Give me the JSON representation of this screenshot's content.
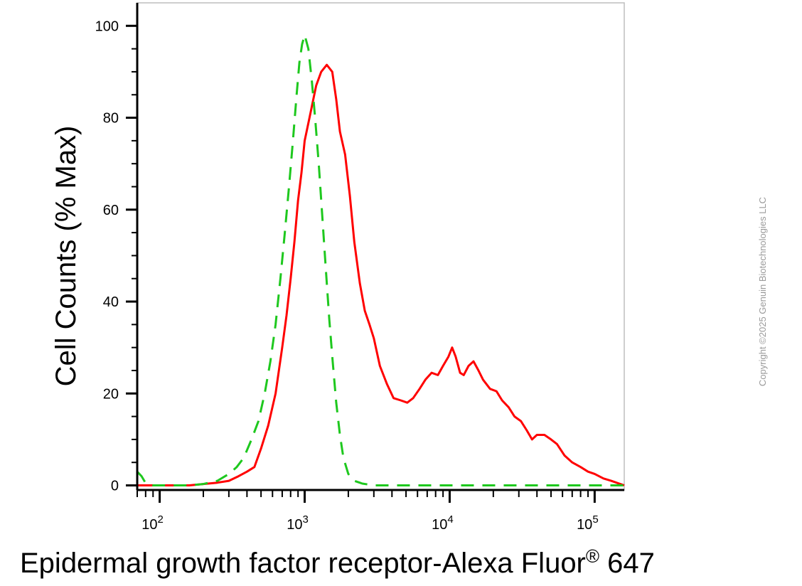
{
  "chart_data": {
    "type": "line",
    "xlabel": "Epidermal growth factor receptor-Alexa Fluor",
    "xlabel_superscript": "®",
    "xlabel_suffix": " 647",
    "ylabel": "Cell Counts (% Max)",
    "xscale": "log",
    "xlim": [
      70,
      160000
    ],
    "ylim": [
      -1,
      105
    ],
    "yticks": [
      0,
      20,
      40,
      60,
      80,
      100
    ],
    "xticks": [
      {
        "value": 100,
        "base": "10",
        "exp": "2"
      },
      {
        "value": 1000,
        "base": "10",
        "exp": "3"
      },
      {
        "value": 10000,
        "base": "10",
        "exp": "4"
      },
      {
        "value": 100000,
        "base": "10",
        "exp": "5"
      }
    ],
    "grid": false,
    "series": [
      {
        "color": "#ff0000",
        "style": "solid",
        "points": [
          [
            70,
            0
          ],
          [
            90,
            0
          ],
          [
            120,
            0
          ],
          [
            160,
            0
          ],
          [
            200,
            0.3
          ],
          [
            250,
            0.6
          ],
          [
            300,
            1
          ],
          [
            350,
            2
          ],
          [
            400,
            3
          ],
          [
            450,
            4
          ],
          [
            500,
            8
          ],
          [
            560,
            13
          ],
          [
            630,
            20
          ],
          [
            700,
            30
          ],
          [
            750,
            37
          ],
          [
            800,
            45
          ],
          [
            850,
            53
          ],
          [
            900,
            62
          ],
          [
            950,
            68
          ],
          [
            1000,
            75
          ],
          [
            1080,
            80
          ],
          [
            1200,
            87
          ],
          [
            1300,
            90
          ],
          [
            1420,
            91.5
          ],
          [
            1550,
            90
          ],
          [
            1650,
            84
          ],
          [
            1750,
            77
          ],
          [
            1900,
            72
          ],
          [
            2050,
            63
          ],
          [
            2200,
            53
          ],
          [
            2400,
            44
          ],
          [
            2600,
            38
          ],
          [
            2800,
            35
          ],
          [
            3000,
            32
          ],
          [
            3300,
            26
          ],
          [
            3700,
            22
          ],
          [
            4100,
            19
          ],
          [
            4600,
            18.5
          ],
          [
            5100,
            18
          ],
          [
            5600,
            19
          ],
          [
            6200,
            21
          ],
          [
            6800,
            23
          ],
          [
            7500,
            24.5
          ],
          [
            8300,
            24
          ],
          [
            9000,
            26
          ],
          [
            9800,
            28
          ],
          [
            10400,
            30
          ],
          [
            11000,
            28
          ],
          [
            11800,
            24.5
          ],
          [
            12500,
            24
          ],
          [
            13500,
            26
          ],
          [
            14600,
            27
          ],
          [
            15800,
            25
          ],
          [
            17000,
            23
          ],
          [
            19000,
            21
          ],
          [
            21000,
            20.5
          ],
          [
            23000,
            18.5
          ],
          [
            25500,
            17
          ],
          [
            28000,
            15
          ],
          [
            31000,
            14
          ],
          [
            34000,
            12
          ],
          [
            37000,
            10
          ],
          [
            40000,
            11
          ],
          [
            45000,
            11
          ],
          [
            50000,
            10
          ],
          [
            55000,
            9
          ],
          [
            62000,
            6.5
          ],
          [
            70000,
            5
          ],
          [
            80000,
            4
          ],
          [
            90000,
            3
          ],
          [
            100000,
            2.5
          ],
          [
            115000,
            1.5
          ],
          [
            130000,
            1
          ],
          [
            150000,
            0.3
          ],
          [
            160000,
            0
          ]
        ]
      },
      {
        "color": "#1ec81e",
        "style": "dashed",
        "points": [
          [
            70,
            3
          ],
          [
            75,
            2
          ],
          [
            80,
            0.5
          ],
          [
            90,
            0
          ],
          [
            120,
            0
          ],
          [
            160,
            0
          ],
          [
            200,
            0.3
          ],
          [
            250,
            1
          ],
          [
            300,
            2.5
          ],
          [
            340,
            4
          ],
          [
            380,
            6
          ],
          [
            430,
            10
          ],
          [
            480,
            14
          ],
          [
            530,
            20
          ],
          [
            580,
            27
          ],
          [
            630,
            35
          ],
          [
            680,
            45
          ],
          [
            730,
            55
          ],
          [
            780,
            65
          ],
          [
            830,
            75
          ],
          [
            880,
            85
          ],
          [
            920,
            92
          ],
          [
            960,
            96
          ],
          [
            1000,
            98
          ],
          [
            1060,
            95
          ],
          [
            1120,
            88
          ],
          [
            1180,
            80
          ],
          [
            1250,
            70
          ],
          [
            1320,
            59
          ],
          [
            1400,
            47
          ],
          [
            1480,
            36
          ],
          [
            1560,
            27
          ],
          [
            1650,
            18
          ],
          [
            1750,
            11
          ],
          [
            1850,
            6
          ],
          [
            2000,
            2.5
          ],
          [
            2200,
            1
          ],
          [
            2500,
            0.4
          ],
          [
            3000,
            0
          ],
          [
            10000,
            0
          ],
          [
            100000,
            0
          ],
          [
            160000,
            0
          ]
        ]
      }
    ]
  },
  "watermark": "Copyright ©2025 Genuin Biotechnologies LLC"
}
